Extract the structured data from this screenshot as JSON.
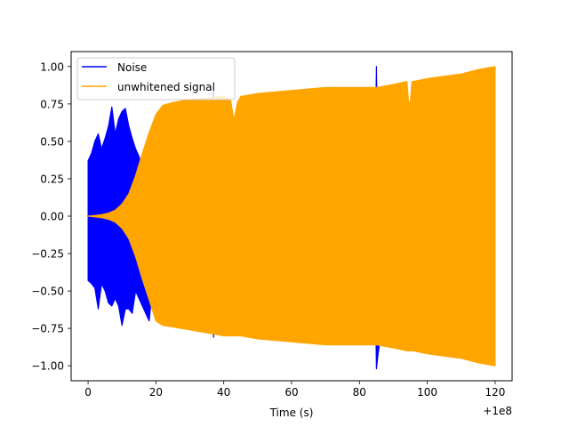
{
  "chart_data": {
    "type": "line",
    "title": "",
    "xlabel": "Time (s)",
    "ylabel": "",
    "x_offset_label": "+1e8",
    "xlim": [
      -5,
      125
    ],
    "ylim": [
      -1.1,
      1.1
    ],
    "x_ticks": [
      0,
      20,
      40,
      60,
      80,
      100,
      120
    ],
    "x_tick_labels": [
      "0",
      "20",
      "40",
      "60",
      "80",
      "100",
      "120"
    ],
    "y_ticks": [
      -1.0,
      -0.75,
      -0.5,
      -0.25,
      0.0,
      0.25,
      0.5,
      0.75,
      1.0
    ],
    "y_tick_labels": [
      "−1.00",
      "−0.75",
      "−0.50",
      "−0.25",
      "0.00",
      "0.25",
      "0.50",
      "0.75",
      "1.00"
    ],
    "grid": false,
    "legend": {
      "position": "top-left",
      "entries": [
        "Noise",
        "unwhitened signal"
      ]
    },
    "series": [
      {
        "name": "Noise",
        "color": "#0000ff",
        "envelope_x": [
          0,
          1,
          2,
          3,
          4,
          5,
          6,
          7,
          8,
          9,
          10,
          11,
          12,
          13,
          14,
          15,
          16,
          18,
          20,
          25,
          30,
          36,
          37,
          38,
          44,
          45,
          50,
          60,
          70,
          80,
          84.5,
          85,
          85.5,
          90,
          100,
          110,
          120
        ],
        "envelope_upper": [
          0.37,
          0.42,
          0.5,
          0.55,
          0.45,
          0.52,
          0.6,
          0.73,
          0.55,
          0.65,
          0.7,
          0.72,
          0.6,
          0.52,
          0.45,
          0.4,
          0.32,
          0.25,
          0.2,
          0.2,
          0.2,
          0.2,
          0.86,
          0.2,
          0.2,
          0.2,
          0.2,
          0.2,
          0.2,
          0.2,
          0.2,
          1.0,
          0.2,
          0.2,
          0.2,
          0.2,
          0.2
        ],
        "envelope_lower": [
          -0.43,
          -0.45,
          -0.48,
          -0.62,
          -0.45,
          -0.5,
          -0.58,
          -0.6,
          -0.55,
          -0.6,
          -0.73,
          -0.62,
          -0.62,
          -0.65,
          -0.5,
          -0.55,
          -0.6,
          -0.7,
          -0.25,
          -0.2,
          -0.2,
          -0.2,
          -0.81,
          -0.2,
          -0.2,
          -0.78,
          -0.2,
          -0.2,
          -0.2,
          -0.2,
          -0.2,
          -1.02,
          -0.92,
          -0.2,
          -0.2,
          -0.2,
          -0.2
        ]
      },
      {
        "name": "unwhitened signal",
        "color": "#ffa500",
        "envelope_x": [
          0,
          2,
          4,
          6,
          8,
          10,
          12,
          14,
          16,
          18,
          20,
          22,
          25,
          30,
          40,
          42,
          43,
          44,
          45,
          50,
          60,
          70,
          80,
          85,
          90,
          94,
          94.5,
          95,
          95.5,
          96,
          100,
          110,
          115,
          120
        ],
        "envelope_upper": [
          0.0,
          0.005,
          0.01,
          0.02,
          0.04,
          0.08,
          0.15,
          0.27,
          0.42,
          0.56,
          0.68,
          0.74,
          0.76,
          0.78,
          0.8,
          0.78,
          0.64,
          0.76,
          0.8,
          0.82,
          0.84,
          0.86,
          0.86,
          0.86,
          0.88,
          0.9,
          0.76,
          0.76,
          0.9,
          0.9,
          0.92,
          0.95,
          0.98,
          1.0
        ],
        "envelope_lower": [
          0.0,
          -0.005,
          -0.01,
          -0.02,
          -0.04,
          -0.08,
          -0.15,
          -0.27,
          -0.42,
          -0.56,
          -0.7,
          -0.73,
          -0.74,
          -0.76,
          -0.8,
          -0.8,
          -0.8,
          -0.8,
          -0.8,
          -0.82,
          -0.84,
          -0.86,
          -0.86,
          -0.86,
          -0.88,
          -0.9,
          -0.9,
          -0.9,
          -0.9,
          -0.9,
          -0.92,
          -0.95,
          -0.98,
          -1.0
        ]
      }
    ]
  }
}
